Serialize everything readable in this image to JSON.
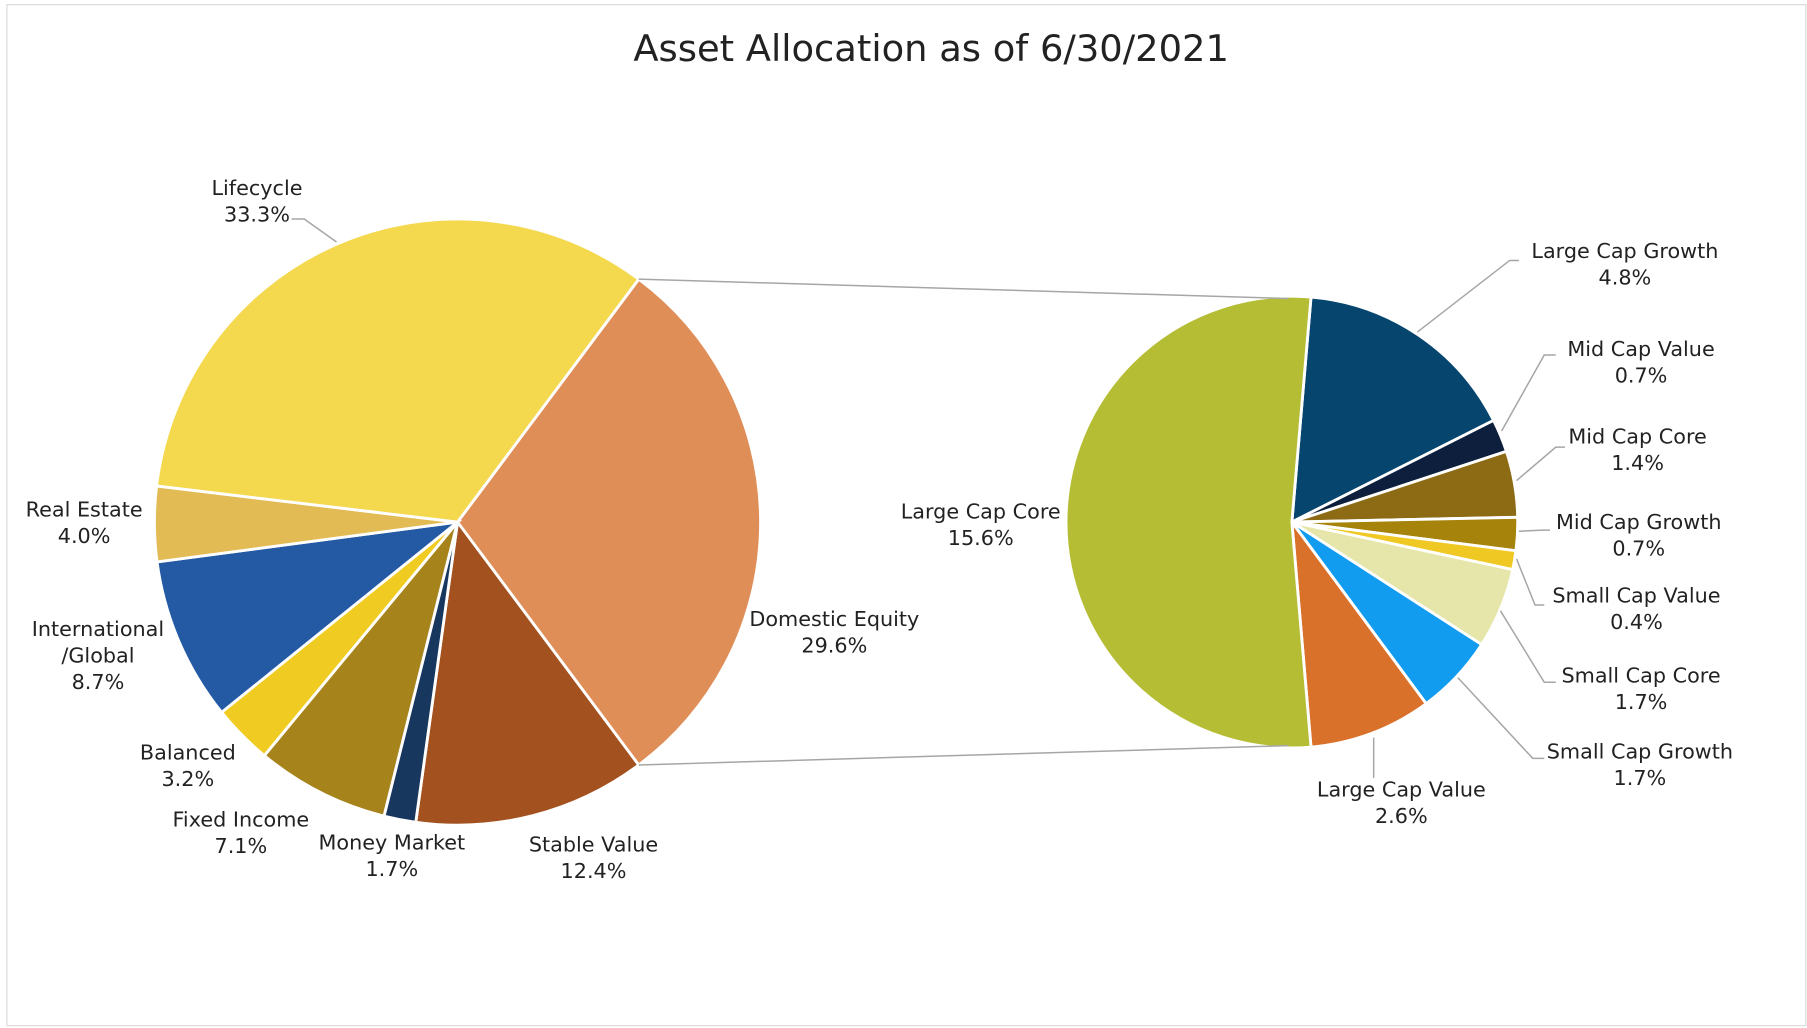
{
  "chart_data": {
    "type": "pie-of-pie",
    "title": "Asset Allocation as of 6/30/2021",
    "categories": [
      "Domestic Equity",
      "Stable Value",
      "Money Market",
      "Fixed Income",
      "Balanced",
      "International/Global",
      "Real Estate",
      "Lifecycle"
    ],
    "values": [
      29.6,
      12.4,
      1.7,
      7.1,
      3.2,
      8.7,
      4.0,
      33.3
    ],
    "value_labels": [
      "29.6%",
      "12.4%",
      "1.7%",
      "7.1%",
      "3.2%",
      "8.7%",
      "4.0%",
      "33.3%"
    ],
    "colors": [
      "#e08e58",
      "#a3511f",
      "#17375e",
      "#a6841b",
      "#f0cc22",
      "#2459a4",
      "#e3bb55",
      "#f4d84e"
    ],
    "breakdown": {
      "categories": [
        "Large Cap Growth",
        "Mid Cap Value",
        "Mid Cap Core",
        "Mid Cap Growth",
        "Small Cap Value",
        "Small Cap Core",
        "Small Cap Growth",
        "Large Cap Value",
        "Large Cap Core"
      ],
      "values": [
        4.8,
        0.7,
        1.4,
        0.7,
        0.4,
        1.7,
        1.7,
        2.6,
        15.6
      ],
      "value_labels": [
        "4.8%",
        "0.7%",
        "1.4%",
        "0.7%",
        "0.4%",
        "1.7%",
        "1.7%",
        "2.6%",
        "15.6%"
      ],
      "colors": [
        "#06456e",
        "#0d1f3d",
        "#8c6b14",
        "#a6830a",
        "#f0c823",
        "#e6e6aa",
        "#129cf0",
        "#d9712b",
        "#b5bd35"
      ]
    }
  }
}
